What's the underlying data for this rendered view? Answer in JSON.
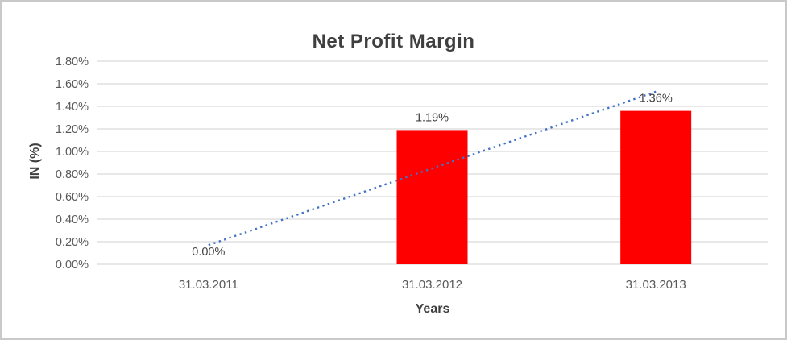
{
  "chart_data": {
    "type": "bar",
    "title": "Net Profit Margin",
    "xlabel": "Years",
    "ylabel": "IN (%)",
    "categories": [
      "31.03.2011",
      "31.03.2012",
      "31.03.2013"
    ],
    "values": [
      0.0,
      1.19,
      1.36
    ],
    "data_labels": [
      "0.00%",
      "1.19%",
      "1.36%"
    ],
    "ylim": [
      0,
      1.8
    ],
    "ytick_step": 0.2,
    "ytick_labels": [
      "0.00%",
      "0.20%",
      "0.40%",
      "0.60%",
      "0.80%",
      "1.00%",
      "1.20%",
      "1.40%",
      "1.60%",
      "1.80%"
    ],
    "grid": true,
    "legend": false,
    "bar_color": "#ff0000",
    "trendline": {
      "type": "linear",
      "style": "dotted",
      "color": "#4472c4",
      "from_value": 0.17,
      "to_value": 1.53
    },
    "colors": {
      "title": "#3f3f3f",
      "axis_title": "#3f3f3f",
      "tick_label": "#595959",
      "data_label": "#404040",
      "gridline": "#d9d9d9",
      "background": "#ffffff",
      "frame_border": "#c9c9c9"
    }
  }
}
